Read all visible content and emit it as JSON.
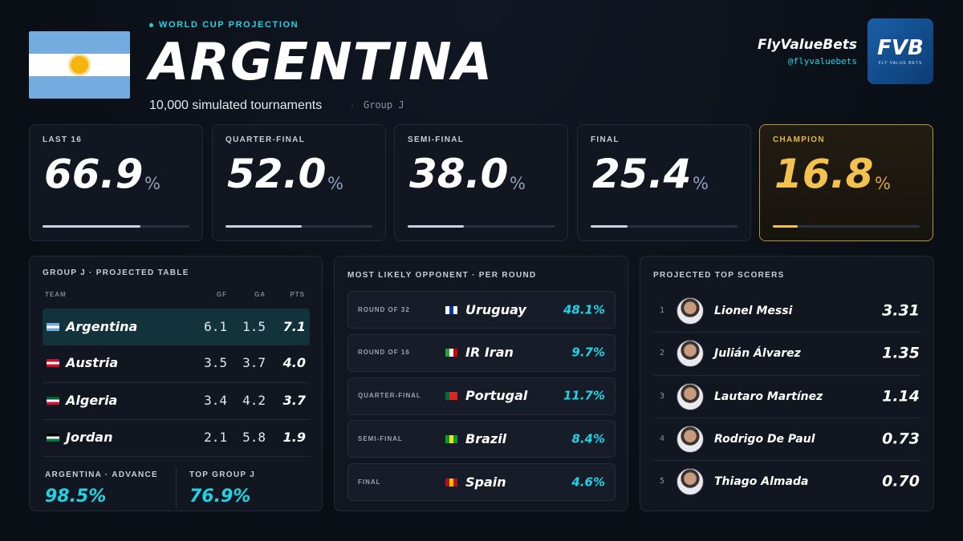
{
  "header": {
    "kicker": "WORLD CUP PROJECTION",
    "title": "ARGENTINA",
    "subtitle": "10,000 simulated tournaments",
    "group": "Group J",
    "brand": "FlyValueBets",
    "handle": "@flyvaluebets",
    "logo": "FVB",
    "logo_tagline": "FLY VALUE BETS"
  },
  "stages": [
    {
      "name": "LAST 16",
      "value": 66.9,
      "label": "66.9",
      "unit": "%"
    },
    {
      "name": "QUARTER-FINAL",
      "value": 52.0,
      "label": "52.0",
      "unit": "%"
    },
    {
      "name": "SEMI-FINAL",
      "value": 38.0,
      "label": "38.0",
      "unit": "%"
    },
    {
      "name": "FINAL",
      "value": 25.4,
      "label": "25.4",
      "unit": "%"
    },
    {
      "name": "CHAMPION",
      "value": 16.8,
      "label": "16.8",
      "unit": "%"
    }
  ],
  "group_table": {
    "title": "GROUP J · PROJECTED TABLE",
    "columns": [
      "TEAM",
      "GF",
      "GA",
      "PTS"
    ],
    "rows": [
      [
        "Argentina",
        "6.1",
        "1.5",
        "7.1"
      ],
      [
        "Austria",
        "3.5",
        "3.7",
        "4.0"
      ],
      [
        "Algeria",
        "3.4",
        "4.2",
        "3.7"
      ],
      [
        "Jordan",
        "2.1",
        "5.8",
        "1.9"
      ]
    ],
    "summary": [
      {
        "label": "ARGENTINA · ADVANCE",
        "value": "98.5%"
      },
      {
        "label": "TOP GROUP J",
        "value": "76.9%"
      }
    ]
  },
  "opponents": {
    "title": "MOST LIKELY OPPONENT · PER ROUND",
    "rows": [
      {
        "round": "ROUND OF 32",
        "team": "Uruguay",
        "prob": "48.1%"
      },
      {
        "round": "ROUND OF 16",
        "team": "IR Iran",
        "prob": "9.7%"
      },
      {
        "round": "QUARTER-FINAL",
        "team": "Portugal",
        "prob": "11.7%"
      },
      {
        "round": "SEMI-FINAL",
        "team": "Brazil",
        "prob": "8.4%"
      },
      {
        "round": "FINAL",
        "team": "Spain",
        "prob": "4.6%"
      }
    ]
  },
  "scorers": {
    "title": "PROJECTED TOP SCORERS",
    "rows": [
      {
        "rank": 1,
        "name": "Lionel Messi",
        "value": "3.31"
      },
      {
        "rank": 2,
        "name": "Julián Álvarez",
        "value": "1.35"
      },
      {
        "rank": 3,
        "name": "Lautaro Martínez",
        "value": "1.14"
      },
      {
        "rank": 4,
        "name": "Rodrigo De Paul",
        "value": "0.73"
      },
      {
        "rank": 5,
        "name": "Thiago Almada",
        "value": "0.70"
      }
    ]
  }
}
